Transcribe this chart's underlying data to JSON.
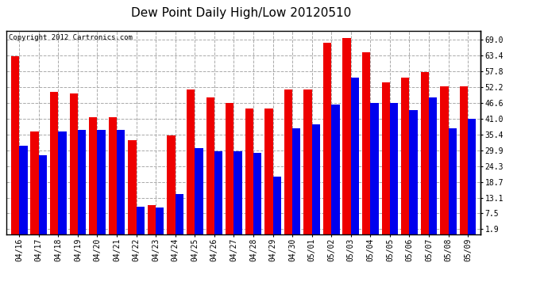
{
  "title": "Dew Point Daily High/Low 20120510",
  "copyright": "Copyright 2012 Cartronics.com",
  "dates": [
    "04/16",
    "04/17",
    "04/18",
    "04/19",
    "04/20",
    "04/21",
    "04/22",
    "04/23",
    "04/24",
    "04/25",
    "04/26",
    "04/27",
    "04/28",
    "04/29",
    "04/30",
    "05/01",
    "05/02",
    "05/03",
    "05/04",
    "05/05",
    "05/06",
    "05/07",
    "05/08",
    "05/09"
  ],
  "highs": [
    63.0,
    36.5,
    50.5,
    50.0,
    41.5,
    41.5,
    33.5,
    10.5,
    35.0,
    51.5,
    48.5,
    46.5,
    44.5,
    44.5,
    51.5,
    51.5,
    68.0,
    69.5,
    64.5,
    54.0,
    55.5,
    57.5,
    52.5,
    52.5
  ],
  "lows": [
    31.5,
    28.0,
    36.5,
    37.0,
    37.0,
    37.0,
    10.0,
    9.5,
    14.5,
    30.5,
    29.5,
    29.5,
    29.0,
    20.5,
    37.5,
    39.0,
    46.0,
    55.5,
    46.5,
    46.5,
    44.0,
    48.5,
    37.5,
    41.0
  ],
  "bar_color_high": "#ee0000",
  "bar_color_low": "#0000ee",
  "background_color": "#ffffff",
  "grid_color": "#aaaaaa",
  "yticks": [
    1.9,
    7.5,
    13.1,
    18.7,
    24.3,
    29.9,
    35.4,
    41.0,
    46.6,
    52.2,
    57.8,
    63.4,
    69.0
  ],
  "ymin": 0,
  "ymax": 72,
  "title_fontsize": 11,
  "tick_fontsize": 7,
  "copyright_fontsize": 6.5
}
